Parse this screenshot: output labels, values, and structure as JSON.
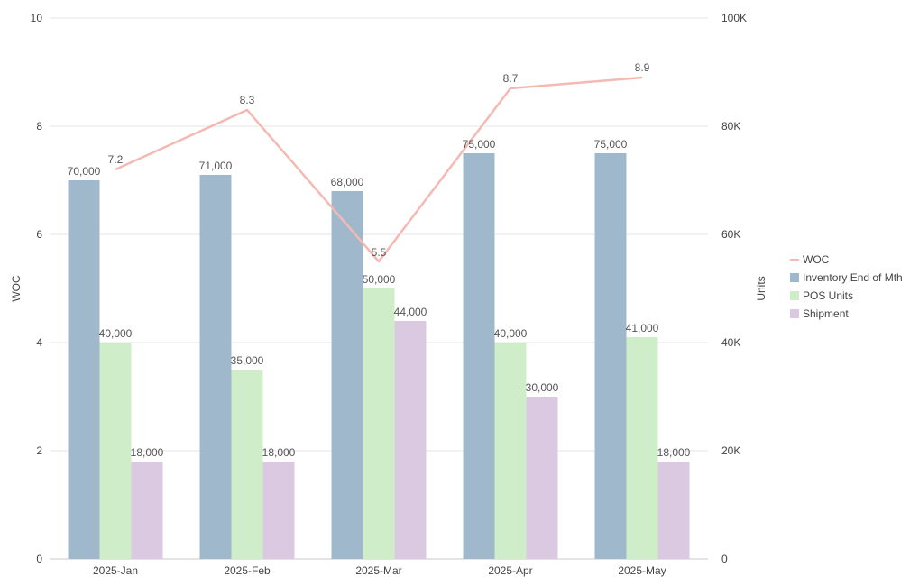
{
  "chart_data": {
    "type": "bar",
    "categories": [
      "2025-Jan",
      "2025-Feb",
      "2025-Mar",
      "2025-Apr",
      "2025-May"
    ],
    "series": [
      {
        "name": "Inventory End of Mth",
        "kind": "bar",
        "axis": "right",
        "color": "#a0b8cc",
        "values": [
          70000,
          71000,
          68000,
          75000,
          75000
        ],
        "labels": [
          "70,000",
          "71,000",
          "68,000",
          "75,000",
          "75,000"
        ]
      },
      {
        "name": "POS Units",
        "kind": "bar",
        "axis": "right",
        "color": "#d0edca",
        "values": [
          40000,
          35000,
          50000,
          40000,
          41000
        ],
        "labels": [
          "40,000",
          "35,000",
          "50,000",
          "40,000",
          "41,000"
        ]
      },
      {
        "name": "Shipment",
        "kind": "bar",
        "axis": "right",
        "color": "#dbc9e1",
        "values": [
          18000,
          18000,
          44000,
          30000,
          18000
        ],
        "labels": [
          "18,000",
          "18,000",
          "44,000",
          "30,000",
          "18,000"
        ]
      },
      {
        "name": "WOC",
        "kind": "line",
        "axis": "left",
        "color": "#f4b9b2",
        "values": [
          7.2,
          8.3,
          5.5,
          8.7,
          8.9
        ],
        "labels": [
          "7.2",
          "8.3",
          "5.5",
          "8.7",
          "8.9"
        ]
      }
    ],
    "y_left": {
      "label": "WOC",
      "range": [
        0,
        10
      ],
      "ticks": [
        "0",
        "2",
        "4",
        "6",
        "8",
        "10"
      ],
      "tick_values": [
        0,
        2,
        4,
        6,
        8,
        10
      ]
    },
    "y_right": {
      "label": "Units",
      "range": [
        0,
        100000
      ],
      "ticks": [
        "0",
        "20K",
        "40K",
        "60K",
        "80K",
        "100K"
      ],
      "tick_values": [
        0,
        20000,
        40000,
        60000,
        80000,
        100000
      ]
    },
    "legend": {
      "position": "right",
      "items": [
        "WOC",
        "Inventory End of Mth",
        "POS Units",
        "Shipment"
      ]
    },
    "grid": true
  }
}
